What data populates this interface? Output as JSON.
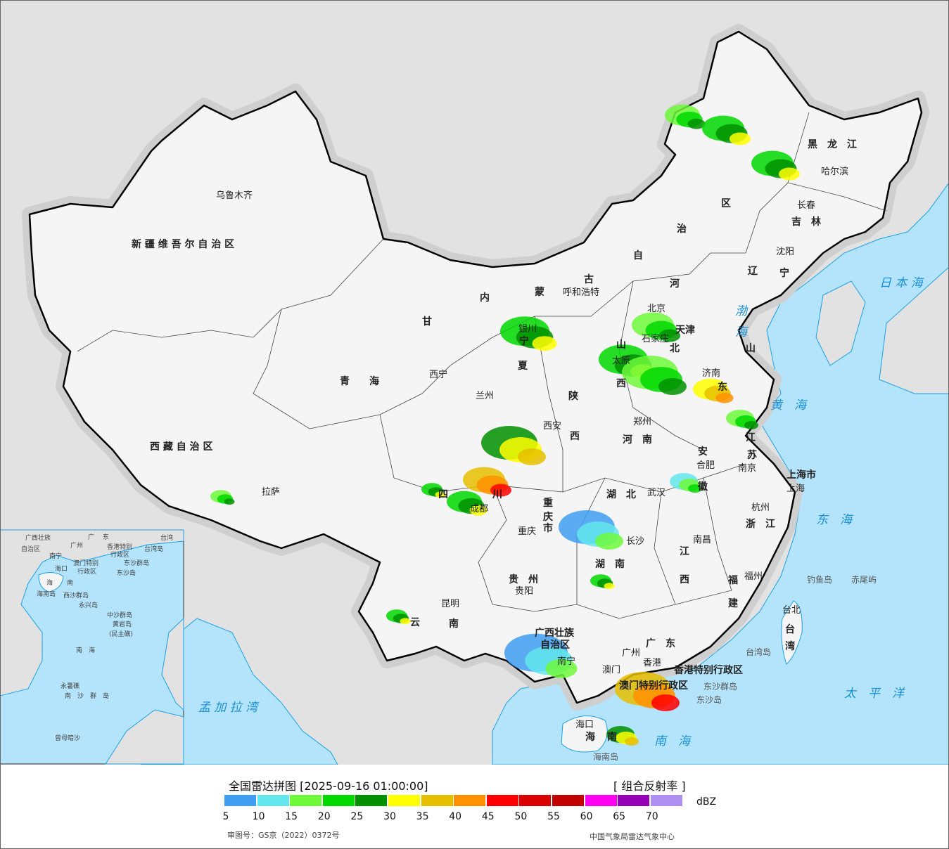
{
  "title": "全国雷达拼图 [2025-09-16 01:00:00]",
  "product": "[ 组合反射率 ]",
  "unit": "dBZ",
  "approval_number": "审图号：GS京（2022）0372号",
  "publisher": "中国气象局雷达气象中心",
  "colors": {
    "sea": "#b4e4fb",
    "foreign_land": "#e2e2e2",
    "china_land": "#f5f5f5",
    "coast_line": "#1aa0e6",
    "border": "#000000"
  },
  "scale": {
    "ticks": [
      "5",
      "10",
      "15",
      "20",
      "25",
      "30",
      "35",
      "40",
      "45",
      "50",
      "55",
      "60",
      "65",
      "70"
    ],
    "colors": [
      "#3f9df2",
      "#63e6ec",
      "#6ef93c",
      "#00d800",
      "#009000",
      "#ffff00",
      "#e6c000",
      "#ff9000",
      "#ff0000",
      "#d80000",
      "#c00000",
      "#ff00f0",
      "#9600b4",
      "#ad90f0"
    ]
  },
  "labels": {
    "provinces": [
      "新 疆 维 吾 尔 自 治 区",
      "西 藏 自 治 区",
      "青　　海",
      "甘",
      "内",
      "蒙",
      "古",
      "自",
      "治",
      "区",
      "黑　龙　江",
      "吉　林",
      "辽",
      "宁",
      "河",
      "北",
      "山",
      "西",
      "陕",
      "西",
      "河　南",
      "山",
      "东",
      "江",
      "苏",
      "安",
      "徽",
      "湖　北",
      "湖　南",
      "江",
      "西",
      "浙　江",
      "福",
      "建",
      "广　东",
      "广西壮族",
      "自治区",
      "贵　州",
      "云",
      "南",
      "四",
      "川",
      "重",
      "庆",
      "市",
      "海",
      "南",
      "台",
      "湾",
      "宁",
      "夏",
      "上海市",
      "香港特别行政区",
      "澳门特别行政区",
      "天津"
    ],
    "cities": [
      "乌鲁木齐",
      "拉萨",
      "西宁",
      "兰州",
      "银川",
      "呼和浩特",
      "北京",
      "石家庄",
      "太原",
      "济南",
      "郑州",
      "西安",
      "成都",
      "重庆",
      "武汉",
      "合肥",
      "南京",
      "上海",
      "杭州",
      "南昌",
      "长沙",
      "贵阳",
      "昆明",
      "南宁",
      "广州",
      "香港",
      "澳门",
      "福州",
      "台北",
      "海口",
      "哈尔滨",
      "长春",
      "沈阳"
    ],
    "seas": [
      "日 本 海",
      "黄　海",
      "东　海",
      "太　平　洋",
      "南　海",
      "孟 加 拉 湾",
      "渤",
      "海"
    ],
    "islands": [
      "钓鱼岛",
      "赤尾屿",
      "台湾岛",
      "东沙群岛",
      "东沙岛",
      "海南岛"
    ]
  },
  "inset": {
    "labels": [
      "广西壮族",
      "自治区",
      "南宁",
      "广",
      "东",
      "广州",
      "香港特别",
      "行政区",
      "澳门特别",
      "行政区",
      "台湾岛",
      "台湾",
      "东沙群岛",
      "东沙岛",
      "海口",
      "海",
      "南",
      "海南岛",
      "西沙群岛",
      "永兴岛",
      "中沙群岛",
      "黄岩岛",
      "(民主礁)",
      "南　海",
      "永暑礁",
      "南　沙　群　岛",
      "曾母暗沙"
    ]
  }
}
